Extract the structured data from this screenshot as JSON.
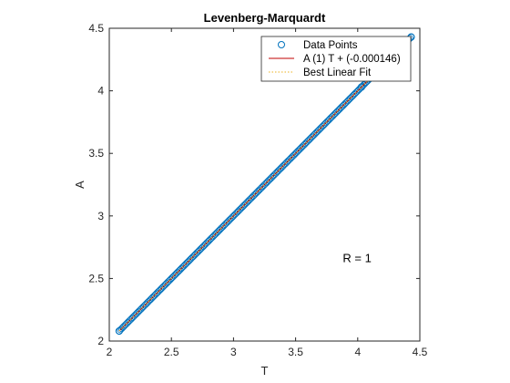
{
  "chart_data": {
    "type": "scatter",
    "title": "Levenberg-Marquardt",
    "xlabel": "T",
    "ylabel": "A",
    "xlim": [
      2,
      4.5
    ],
    "ylim": [
      2,
      4.5
    ],
    "xticks": [
      2,
      2.5,
      3,
      3.5,
      4,
      4.5
    ],
    "yticks": [
      2,
      2.5,
      3,
      3.5,
      4,
      4.5
    ],
    "xtick_labels": [
      "2",
      "2.5",
      "3",
      "3.5",
      "4",
      "4.5"
    ],
    "ytick_labels": [
      "2",
      "2.5",
      "3",
      "3.5",
      "4",
      "4.5"
    ],
    "grid": false,
    "legend_position": "top-right",
    "series": [
      {
        "name": "Data Points",
        "kind": "scatter",
        "marker": "circle",
        "color": "#0072BD",
        "x_range": [
          2.08,
          4.43
        ],
        "highlight_points": [
          [
            2.08,
            2.08
          ],
          [
            4.03,
            4.03
          ],
          [
            4.43,
            4.43
          ]
        ]
      },
      {
        "name": "A (1) T + (-0.000146)",
        "kind": "line",
        "color": "#C00000",
        "slope": 1,
        "intercept": -0.000146
      },
      {
        "name": "Best Linear Fit",
        "kind": "dotted-line",
        "color": "#EDB120",
        "slope": 1,
        "intercept": 0
      }
    ],
    "annotations": [
      {
        "text": "R = 1",
        "x": 3.88,
        "y": 2.63
      }
    ]
  }
}
